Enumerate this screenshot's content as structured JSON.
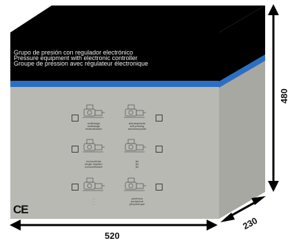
{
  "box": {
    "colors": {
      "black_band": "#000000",
      "blue_stripe": "#2a6fc4",
      "panel": "#b9b9b3",
      "side": "#a7a8a2",
      "arrow": "#000000"
    },
    "header_lines": [
      "Grupo de presión con regulador electrónico",
      "Pressure equipment with electronic controller",
      "Groupe de pression avec régulateur électronique"
    ],
    "ce_mark": "CE",
    "dimensions": {
      "width": "520",
      "height": "480",
      "depth": "230"
    }
  },
  "products": [
    {
      "icon": "pump-icon",
      "lines": [
        "multistage",
        "multistage",
        "multicellulaire"
      ]
    },
    {
      "icon": "pump-icon",
      "lines": [
        "autoaspirante",
        "self-priming",
        "autoamorçante"
      ]
    },
    {
      "icon": "pump-icon",
      "lines": [
        "monocelular",
        "single impeller",
        "monocellulaire"
      ]
    },
    {
      "icon": "pump-icon",
      "lines": [
        "jet",
        "jet",
        "jet"
      ]
    },
    {
      "icon": "pump-icon",
      "lines": [
        "...",
        "...",
        "..."
      ]
    },
    {
      "icon": "pump-icon",
      "lines": [
        "periferica",
        "peripheral",
        "périphérique"
      ]
    }
  ]
}
